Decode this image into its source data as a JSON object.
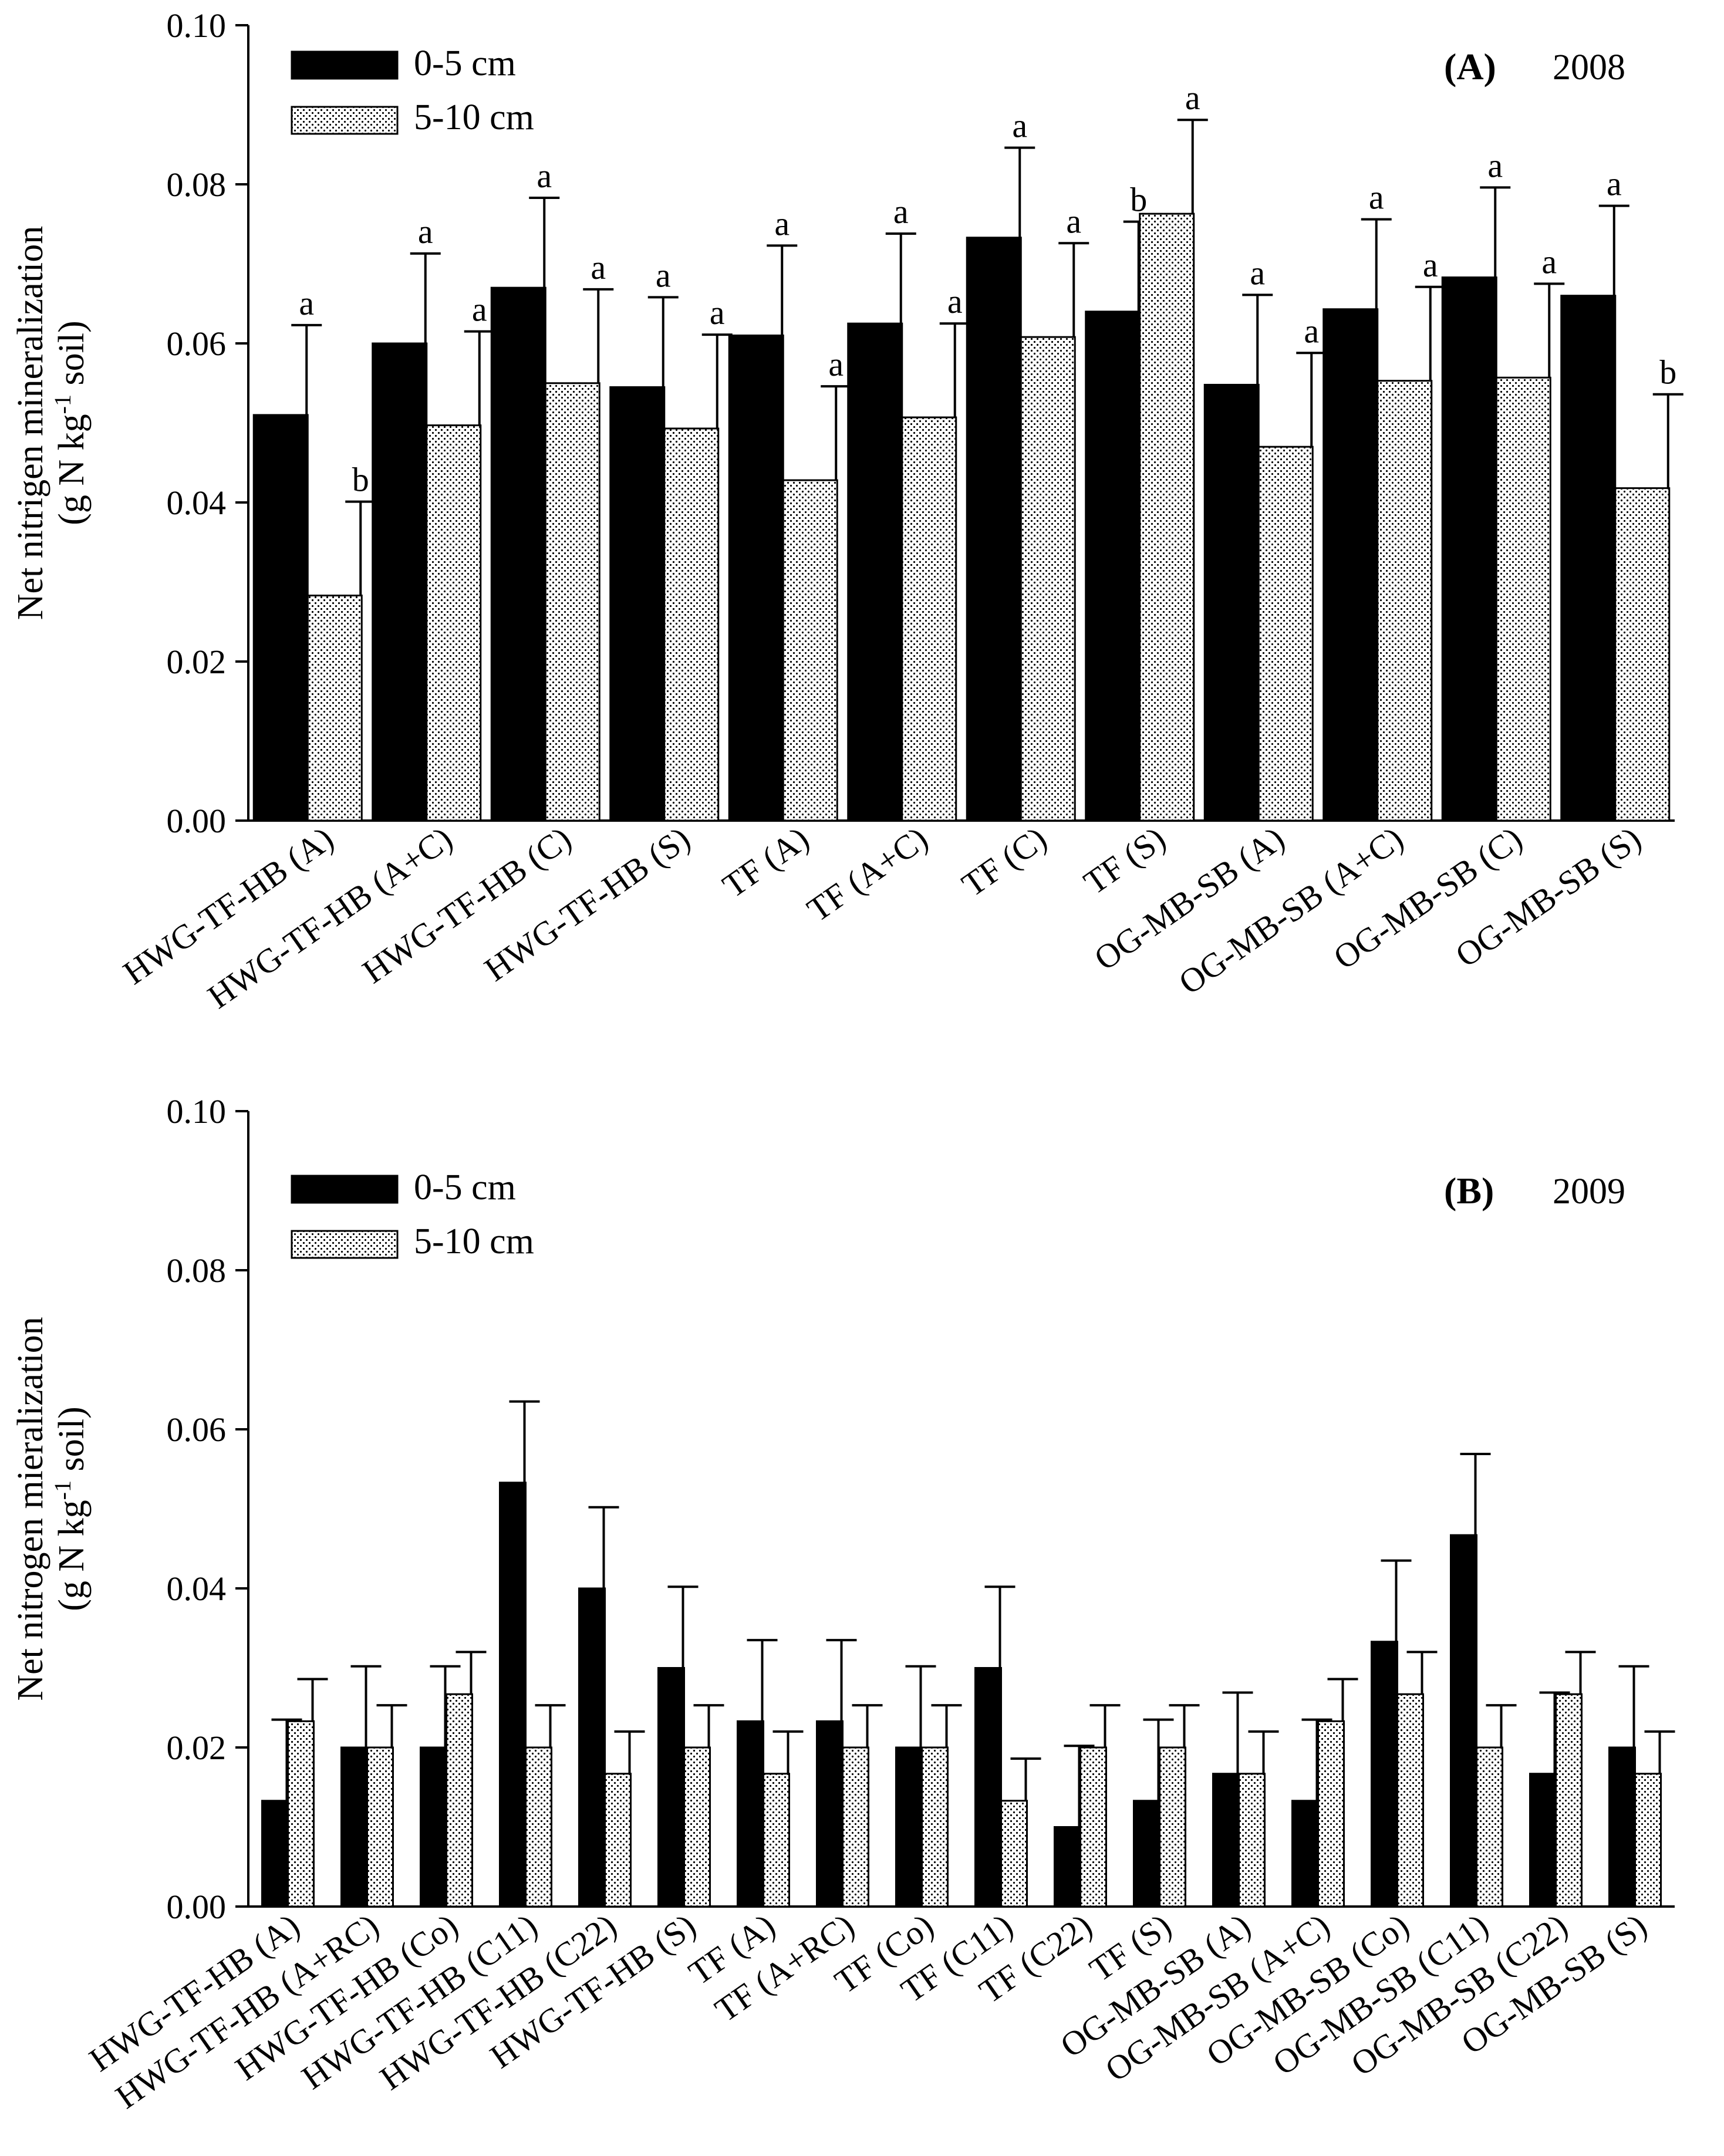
{
  "chart_data": [
    {
      "type": "bar",
      "panel": "(A)",
      "year": "2008",
      "ylabel_line1": "Net nitrigen mineralization",
      "ylabel_line2_prefix": "(g N kg",
      "ylabel_line2_sup": "-1",
      "ylabel_line2_suffix": " soil)",
      "ylim": [
        0,
        0.1
      ],
      "yticks": [
        "0.00",
        "0.02",
        "0.04",
        "0.06",
        "0.08",
        "0.10"
      ],
      "legend": [
        "0-5 cm",
        "5-10 cm"
      ],
      "legend_position": "top-left",
      "categories": [
        "HWG-TF-HB (A)",
        "HWG-TF-HB (A+C)",
        "HWG-TF-HB (C)",
        "HWG-TF-HB (S)",
        "TF (A)",
        "TF (A+C)",
        "TF (C)",
        "TF (S)",
        "OG-MB-SB (A)",
        "OG-MB-SB (A+C)",
        "OG-MB-SB (C)",
        "OG-MB-SB (S)"
      ],
      "series": [
        {
          "name": "0-5 cm",
          "style": "solid",
          "values": [
            0.051,
            0.06,
            0.067,
            0.0545,
            0.061,
            0.0625,
            0.0733,
            0.064,
            0.0548,
            0.0643,
            0.0683,
            0.066
          ],
          "errors": [
            0.0113,
            0.0113,
            0.0113,
            0.0113,
            0.0113,
            0.0113,
            0.0113,
            0.0113,
            0.0113,
            0.0113,
            0.0113,
            0.0113
          ],
          "letters": [
            "a",
            "a",
            "a",
            "a",
            "a",
            "a",
            "a",
            "b",
            "a",
            "a",
            "a",
            "a"
          ]
        },
        {
          "name": "5-10 cm",
          "style": "dotted",
          "values": [
            0.0283,
            0.0497,
            0.055,
            0.0493,
            0.0428,
            0.0507,
            0.0608,
            0.0763,
            0.047,
            0.0553,
            0.0557,
            0.0418
          ],
          "errors": [
            0.0118,
            0.0118,
            0.0118,
            0.0118,
            0.0118,
            0.0118,
            0.0118,
            0.0118,
            0.0118,
            0.0118,
            0.0118,
            0.0118
          ],
          "letters": [
            "b",
            "a",
            "a",
            "a",
            "a",
            "a",
            "a",
            "a",
            "a",
            "a",
            "a",
            "b"
          ]
        }
      ]
    },
    {
      "type": "bar",
      "panel": "(B)",
      "year": "2009",
      "ylabel_line1": "Net nitrogen mieralization",
      "ylabel_line2_prefix": "(g N kg",
      "ylabel_line2_sup": "-1",
      "ylabel_line2_suffix": " soil)",
      "ylim": [
        0,
        0.1
      ],
      "yticks": [
        "0.00",
        "0.02",
        "0.04",
        "0.06",
        "0.08",
        "0.10"
      ],
      "legend": [
        "0-5 cm",
        "5-10 cm"
      ],
      "legend_position": "top-left",
      "categories": [
        "HWG-TF-HB (A)",
        "HWG-TF-HB (A+RC)",
        "HWG-TF-HB (Co)",
        "HWG-TF-HB (C11)",
        "HWG-TF-HB (C22)",
        "HWG-TF-HB (S)",
        "TF (A)",
        "TF (A+RC)",
        "TF (Co)",
        "TF (C11)",
        "TF (C22)",
        "TF (S)",
        "OG-MB-SB (A)",
        "OG-MB-SB (A+C)",
        "OG-MB-SB (Co)",
        "OG-MB-SB (C11)",
        "OG-MB-SB (C22)",
        "OG-MB-SB (S)"
      ],
      "series": [
        {
          "name": "0-5 cm",
          "style": "solid",
          "values": [
            0.0133,
            0.02,
            0.02,
            0.0533,
            0.04,
            0.03,
            0.0233,
            0.0233,
            0.02,
            0.03,
            0.01,
            0.0133,
            0.0167,
            0.0133,
            0.0333,
            0.0467,
            0.0167,
            0.02
          ],
          "errors": [
            0.0102,
            0.0102,
            0.0102,
            0.0102,
            0.0102,
            0.0102,
            0.0102,
            0.0102,
            0.0102,
            0.0102,
            0.0102,
            0.0102,
            0.0102,
            0.0102,
            0.0102,
            0.0102,
            0.0102,
            0.0102
          ]
        },
        {
          "name": "5-10 cm",
          "style": "dotted",
          "values": [
            0.0233,
            0.02,
            0.0267,
            0.02,
            0.0167,
            0.02,
            0.0167,
            0.02,
            0.02,
            0.0133,
            0.02,
            0.02,
            0.0167,
            0.0233,
            0.0267,
            0.02,
            0.0267,
            0.0167
          ],
          "errors": [
            0.0053,
            0.0053,
            0.0053,
            0.0053,
            0.0053,
            0.0053,
            0.0053,
            0.0053,
            0.0053,
            0.0053,
            0.0053,
            0.0053,
            0.0053,
            0.0053,
            0.0053,
            0.0053,
            0.0053,
            0.0053
          ]
        }
      ]
    }
  ]
}
